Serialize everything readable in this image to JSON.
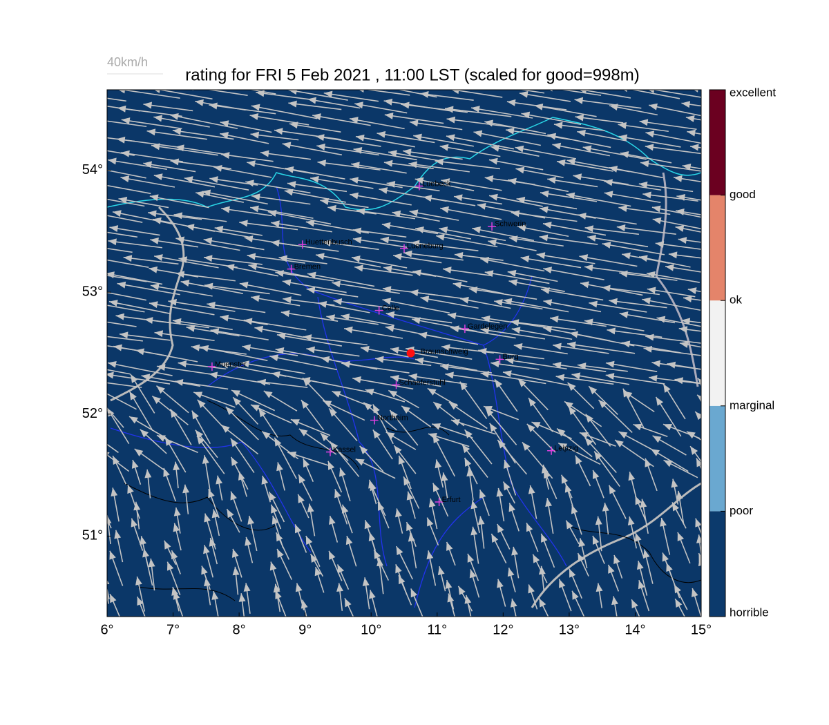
{
  "header": {
    "speed_legend": "40km/h",
    "title": "rating for FRI 5 Feb 2021 , 11:00 LST (scaled for good=998m)"
  },
  "map": {
    "xlim": [
      6,
      15
    ],
    "ylim": [
      50.34,
      54.66
    ],
    "xticks": [
      {
        "value": 6,
        "label": "6°"
      },
      {
        "value": 7,
        "label": "7°"
      },
      {
        "value": 8,
        "label": "8°"
      },
      {
        "value": 9,
        "label": "9°"
      },
      {
        "value": 10,
        "label": "10°"
      },
      {
        "value": 11,
        "label": "11°"
      },
      {
        "value": 12,
        "label": "12°"
      },
      {
        "value": 13,
        "label": "13°"
      },
      {
        "value": 14,
        "label": "14°"
      },
      {
        "value": 15,
        "label": "15°"
      }
    ],
    "yticks": [
      {
        "value": 51,
        "label": "51°"
      },
      {
        "value": 52,
        "label": "52°"
      },
      {
        "value": 53,
        "label": "53°"
      },
      {
        "value": 54,
        "label": "54°"
      }
    ],
    "background": "#0b3768",
    "cities": [
      {
        "name": "Luebeck",
        "lon": 10.73,
        "lat": 53.87
      },
      {
        "name": "Schwerin",
        "lon": 11.83,
        "lat": 53.54
      },
      {
        "name": "Huettenbusch",
        "lon": 8.96,
        "lat": 53.39
      },
      {
        "name": "Lueneburg",
        "lon": 10.5,
        "lat": 53.36
      },
      {
        "name": "Bremen",
        "lon": 8.79,
        "lat": 53.19
      },
      {
        "name": "Celle",
        "lon": 10.12,
        "lat": 52.85
      },
      {
        "name": "Gardelegen",
        "lon": 11.42,
        "lat": 52.7
      },
      {
        "name": "Burg",
        "lon": 11.95,
        "lat": 52.45
      },
      {
        "name": "Muenster",
        "lon": 7.59,
        "lat": 52.39
      },
      {
        "name": "Schaeferstuhl",
        "lon": 10.38,
        "lat": 52.24
      },
      {
        "name": "Northeim",
        "lon": 10.05,
        "lat": 51.95
      },
      {
        "name": "Kassel",
        "lon": 9.38,
        "lat": 51.69
      },
      {
        "name": "Leipzig",
        "lon": 12.73,
        "lat": 51.7
      },
      {
        "name": "Erfurt",
        "lon": 11.03,
        "lat": 51.28
      }
    ],
    "city_color": "#e040e0",
    "site": {
      "name": "Braunschweig",
      "lon": 10.6,
      "lat": 52.5,
      "color": "#ff1010"
    }
  },
  "colorbar": {
    "labels": [
      "horrible",
      "poor",
      "marginal",
      "ok",
      "good",
      "excellent"
    ],
    "colors": [
      "#0c3a6c",
      "#6aa8d0",
      "#f2f2f2",
      "#e4846a",
      "#6b0020"
    ]
  }
}
